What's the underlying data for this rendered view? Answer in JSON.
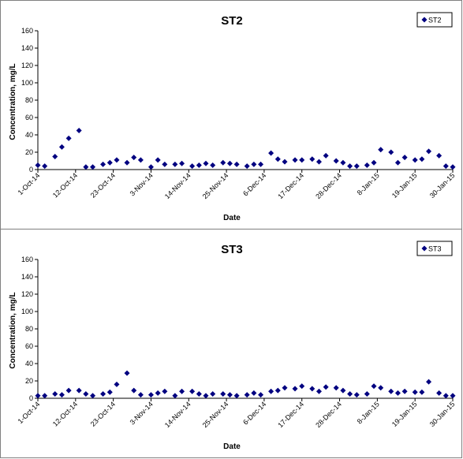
{
  "charts": [
    {
      "type": "scatter",
      "title": "ST2",
      "xlabel": "Date",
      "ylabel": "Concentration, mg/L",
      "ylim": [
        0,
        160
      ],
      "yticks": [
        0,
        20,
        40,
        60,
        80,
        100,
        120,
        140,
        160
      ],
      "xlim": [
        "2014-10-01",
        "2015-01-30"
      ],
      "xticks": [
        "1-Oct-14",
        "12-Oct-14",
        "23-Oct-14",
        "3-Nov-14",
        "14-Nov-14",
        "25-Nov-14",
        "6-Dec-14",
        "17-Dec-14",
        "28-Dec-14",
        "8-Jan-15",
        "19-Jan-15",
        "30-Jan-15"
      ],
      "legend": "top-right",
      "marker_color": "#000080",
      "series": [
        {
          "name": "ST2",
          "points": [
            [
              "2014-10-01",
              5
            ],
            [
              "2014-10-03",
              4
            ],
            [
              "2014-10-06",
              15
            ],
            [
              "2014-10-08",
              26
            ],
            [
              "2014-10-10",
              36
            ],
            [
              "2014-10-13",
              45
            ],
            [
              "2014-10-15",
              3
            ],
            [
              "2014-10-17",
              3
            ],
            [
              "2014-10-20",
              6
            ],
            [
              "2014-10-22",
              8
            ],
            [
              "2014-10-24",
              11
            ],
            [
              "2014-10-27",
              8
            ],
            [
              "2014-10-29",
              14
            ],
            [
              "2014-10-31",
              11
            ],
            [
              "2014-11-03",
              3
            ],
            [
              "2014-11-05",
              11
            ],
            [
              "2014-11-07",
              6
            ],
            [
              "2014-11-10",
              6
            ],
            [
              "2014-11-12",
              7
            ],
            [
              "2014-11-15",
              4
            ],
            [
              "2014-11-17",
              5
            ],
            [
              "2014-11-19",
              7
            ],
            [
              "2014-11-21",
              5
            ],
            [
              "2014-11-24",
              8
            ],
            [
              "2014-11-26",
              7
            ],
            [
              "2014-11-28",
              6
            ],
            [
              "2014-12-01",
              4
            ],
            [
              "2014-12-03",
              6
            ],
            [
              "2014-12-05",
              6
            ],
            [
              "2014-12-08",
              19
            ],
            [
              "2014-12-10",
              12
            ],
            [
              "2014-12-12",
              9
            ],
            [
              "2014-12-15",
              11
            ],
            [
              "2014-12-17",
              11
            ],
            [
              "2014-12-20",
              12
            ],
            [
              "2014-12-22",
              9
            ],
            [
              "2014-12-24",
              16
            ],
            [
              "2014-12-27",
              10
            ],
            [
              "2014-12-29",
              8
            ],
            [
              "2014-12-31",
              4
            ],
            [
              "2015-01-02",
              4
            ],
            [
              "2015-01-05",
              5
            ],
            [
              "2015-01-07",
              8
            ],
            [
              "2015-01-09",
              23
            ],
            [
              "2015-01-12",
              20
            ],
            [
              "2015-01-14",
              8
            ],
            [
              "2015-01-16",
              14
            ],
            [
              "2015-01-19",
              11
            ],
            [
              "2015-01-21",
              12
            ],
            [
              "2015-01-23",
              21
            ],
            [
              "2015-01-26",
              16
            ],
            [
              "2015-01-28",
              4
            ],
            [
              "2015-01-30",
              3
            ]
          ]
        }
      ]
    },
    {
      "type": "scatter",
      "title": "ST3",
      "xlabel": "Date",
      "ylabel": "Concentration, mg/L",
      "ylim": [
        0,
        160
      ],
      "yticks": [
        0,
        20,
        40,
        60,
        80,
        100,
        120,
        140,
        160
      ],
      "xlim": [
        "2014-10-01",
        "2015-01-30"
      ],
      "xticks": [
        "1-Oct-14",
        "12-Oct-14",
        "23-Oct-14",
        "3-Nov-14",
        "14-Nov-14",
        "25-Nov-14",
        "6-Dec-14",
        "17-Dec-14",
        "28-Dec-14",
        "8-Jan-15",
        "19-Jan-15",
        "30-Jan-15"
      ],
      "legend": "top-right",
      "marker_color": "#000080",
      "series": [
        {
          "name": "ST3",
          "points": [
            [
              "2014-10-01",
              3
            ],
            [
              "2014-10-03",
              3
            ],
            [
              "2014-10-06",
              5
            ],
            [
              "2014-10-08",
              4
            ],
            [
              "2014-10-10",
              9
            ],
            [
              "2014-10-13",
              9
            ],
            [
              "2014-10-15",
              5
            ],
            [
              "2014-10-17",
              3
            ],
            [
              "2014-10-20",
              5
            ],
            [
              "2014-10-22",
              7
            ],
            [
              "2014-10-24",
              16
            ],
            [
              "2014-10-27",
              29
            ],
            [
              "2014-10-29",
              9
            ],
            [
              "2014-10-31",
              4
            ],
            [
              "2014-11-03",
              4
            ],
            [
              "2014-11-05",
              6
            ],
            [
              "2014-11-07",
              8
            ],
            [
              "2014-11-10",
              3
            ],
            [
              "2014-11-12",
              8
            ],
            [
              "2014-11-15",
              8
            ],
            [
              "2014-11-17",
              5
            ],
            [
              "2014-11-19",
              3
            ],
            [
              "2014-11-21",
              5
            ],
            [
              "2014-11-24",
              5
            ],
            [
              "2014-11-26",
              4
            ],
            [
              "2014-11-28",
              3
            ],
            [
              "2014-12-01",
              4
            ],
            [
              "2014-12-03",
              6
            ],
            [
              "2014-12-05",
              4
            ],
            [
              "2014-12-08",
              8
            ],
            [
              "2014-12-10",
              9
            ],
            [
              "2014-12-12",
              12
            ],
            [
              "2014-12-15",
              11
            ],
            [
              "2014-12-17",
              14
            ],
            [
              "2014-12-20",
              11
            ],
            [
              "2014-12-22",
              8
            ],
            [
              "2014-12-24",
              13
            ],
            [
              "2014-12-27",
              12
            ],
            [
              "2014-12-29",
              9
            ],
            [
              "2014-12-31",
              5
            ],
            [
              "2015-01-02",
              4
            ],
            [
              "2015-01-05",
              5
            ],
            [
              "2015-01-07",
              14
            ],
            [
              "2015-01-09",
              12
            ],
            [
              "2015-01-12",
              8
            ],
            [
              "2015-01-14",
              6
            ],
            [
              "2015-01-16",
              8
            ],
            [
              "2015-01-19",
              7
            ],
            [
              "2015-01-21",
              7
            ],
            [
              "2015-01-23",
              19
            ],
            [
              "2015-01-26",
              6
            ],
            [
              "2015-01-28",
              3
            ],
            [
              "2015-01-30",
              3
            ]
          ]
        }
      ]
    }
  ]
}
